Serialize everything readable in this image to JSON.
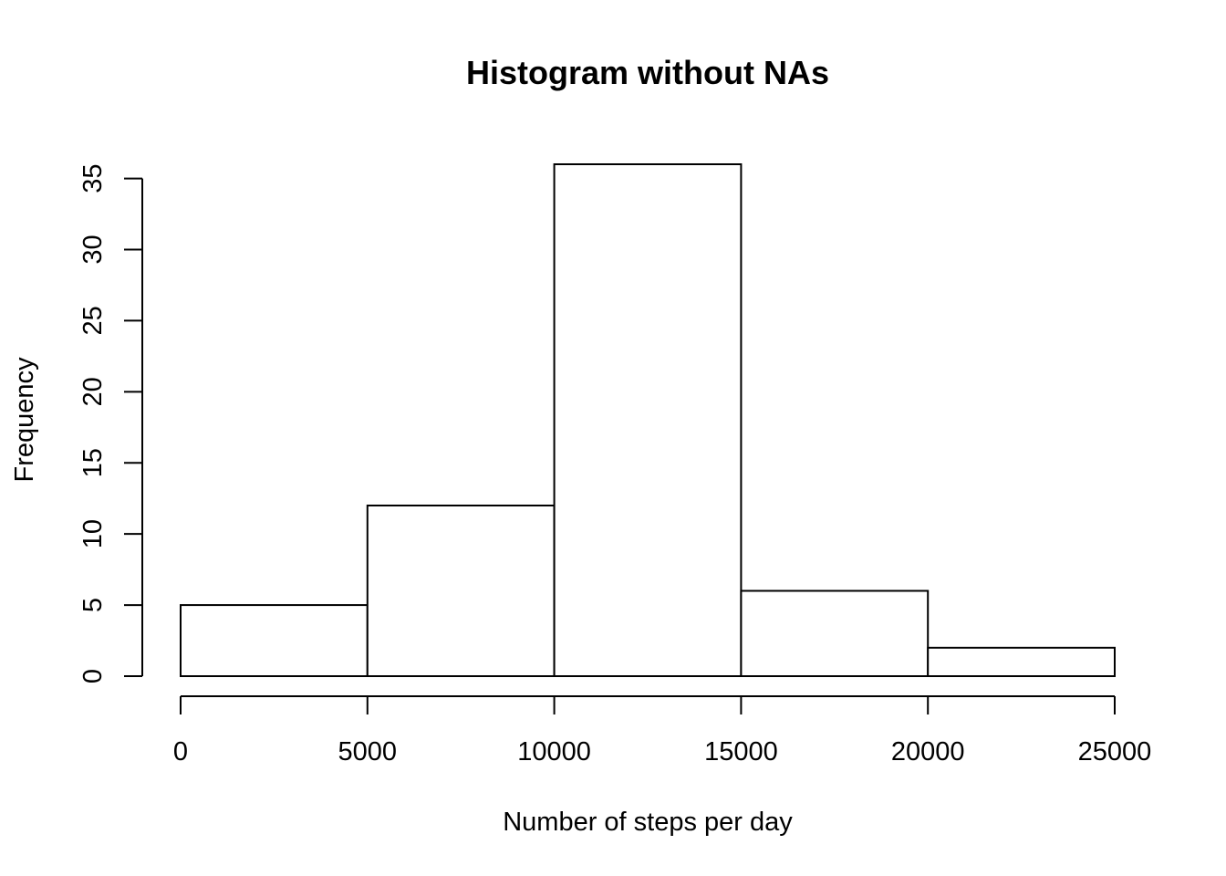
{
  "chart_data": {
    "type": "bar",
    "title": "Histogram without NAs",
    "xlabel": "Number of steps per day",
    "ylabel": "Frequency",
    "bins": [
      {
        "start": 0,
        "end": 5000,
        "count": 5
      },
      {
        "start": 5000,
        "end": 10000,
        "count": 12
      },
      {
        "start": 10000,
        "end": 15000,
        "count": 36
      },
      {
        "start": 15000,
        "end": 20000,
        "count": 6
      },
      {
        "start": 20000,
        "end": 25000,
        "count": 2
      }
    ],
    "x_ticks": [
      0,
      5000,
      10000,
      15000,
      20000,
      25000
    ],
    "y_ticks": [
      0,
      5,
      10,
      15,
      20,
      25,
      30,
      35
    ],
    "xlim": [
      0,
      25000
    ],
    "ylim": [
      0,
      36
    ],
    "grid": false,
    "colors": {
      "bar_fill": "#ffffff",
      "bar_stroke": "#000000"
    }
  }
}
